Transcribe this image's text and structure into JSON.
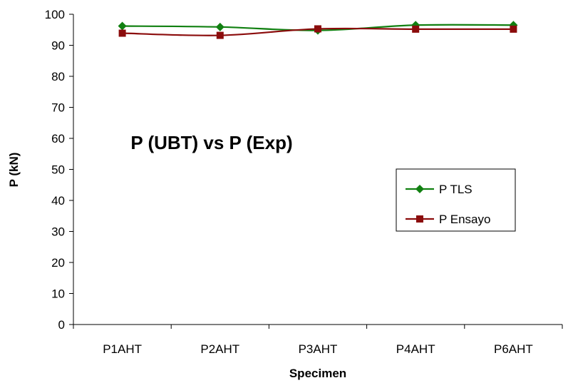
{
  "chart_data": {
    "type": "line",
    "title": "P (UBT) vs P (Exp)",
    "xlabel": "Specimen",
    "ylabel": "P  (kN)",
    "categories": [
      "P1AHT",
      "P2AHT",
      "P3AHT",
      "P4AHT",
      "P6AHT"
    ],
    "ylim": [
      0,
      100
    ],
    "yticks": [
      0,
      10,
      20,
      30,
      40,
      50,
      60,
      70,
      80,
      90,
      100
    ],
    "grid": false,
    "legend_position": "right",
    "series": [
      {
        "name": "P TLS",
        "values": [
          96.2,
          95.9,
          94.8,
          96.5,
          96.5
        ],
        "color": "#118011",
        "marker": "diamond"
      },
      {
        "name": "P Ensayo",
        "values": [
          93.9,
          93.2,
          95.3,
          95.2,
          95.2
        ],
        "color": "#8B0C0C",
        "marker": "square"
      }
    ]
  }
}
